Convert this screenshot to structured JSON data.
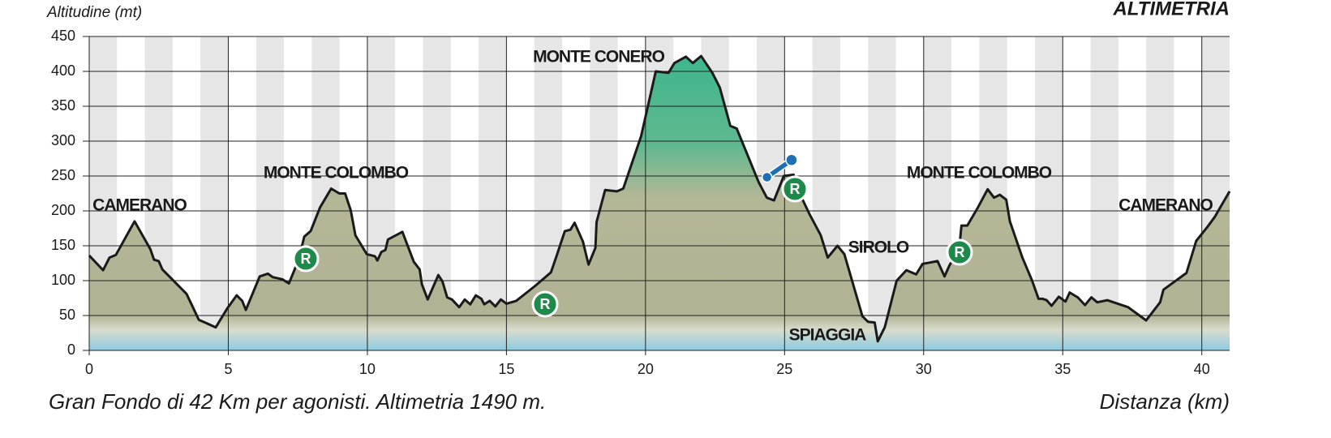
{
  "chart_data": {
    "type": "area",
    "title": "ALTIMETRIA",
    "y_label": "Altitudine (mt)",
    "x_label": "Distanza (km)",
    "subtitle": "Gran Fondo di 42 Km per agonisti. Altimetria 1490 m.",
    "annotations": [
      "CAMERANO",
      "MONTE COLOMBO",
      "MONTE CONERO",
      "SIROLO",
      "SPIAGGIA",
      "MONTE COLOMBO",
      "CAMERANO"
    ],
    "rest_stop_label": "R",
    "x": [
      0,
      0.5,
      0.73,
      0.96,
      1.63,
      2.2,
      2.33,
      2.5,
      2.63,
      3.5,
      3.94,
      4.55,
      4.96,
      5.3,
      5.5,
      5.63,
      6.13,
      6.42,
      6.6,
      6.94,
      7.18,
      7.53,
      7.73,
      7.96,
      8.3,
      8.7,
      8.99,
      9.2,
      9.4,
      9.57,
      9.98,
      10.27,
      10.36,
      10.5,
      10.65,
      10.74,
      11.26,
      11.67,
      11.88,
      11.96,
      12.17,
      12.55,
      12.7,
      12.87,
      13.04,
      13.3,
      13.5,
      13.7,
      13.9,
      14.1,
      14.2,
      14.4,
      14.6,
      14.8,
      15.0,
      15.35,
      16.05,
      16.6,
      16.8,
      17.1,
      17.3,
      17.45,
      17.75,
      17.95,
      18.2,
      18.24,
      18.55,
      18.97,
      19.2,
      19.84,
      20.37,
      20.83,
      21.04,
      21.45,
      21.7,
      22.0,
      22.4,
      22.67,
      23.05,
      23.28,
      24.07,
      24.36,
      24.62,
      24.97,
      25.32,
      25.53,
      25.9,
      26.3,
      26.55,
      26.9,
      27.15,
      27.8,
      28.0,
      28.24,
      28.35,
      28.6,
      29.03,
      29.38,
      29.73,
      29.96,
      30.5,
      30.75,
      30.92,
      31.28,
      31.36,
      31.57,
      31.95,
      32.3,
      32.53,
      32.74,
      32.97,
      33.1,
      33.55,
      33.9,
      34.13,
      34.28,
      34.42,
      34.6,
      34.86,
      35.1,
      35.25,
      35.54,
      35.8,
      36.03,
      36.24,
      36.6,
      37.35,
      38.0,
      38.5,
      38.62,
      39.45,
      39.8,
      40.2,
      40.46,
      41
    ],
    "series": [
      {
        "name": "Altitudine",
        "color": "#1a1a1a",
        "values": [
          136,
          115,
          133,
          137,
          185,
          145,
          130,
          128,
          116,
          81,
          44,
          33,
          60,
          79,
          71,
          58,
          106,
          110,
          105,
          102,
          96,
          130,
          163,
          171,
          205,
          232,
          225,
          225,
          201,
          165,
          138,
          135,
          129,
          141,
          144,
          159,
          170,
          127,
          116,
          95,
          73,
          108,
          99,
          76,
          73,
          62,
          73,
          66,
          79,
          74,
          66,
          71,
          63,
          73,
          67,
          71,
          93,
          112,
          135,
          171,
          173,
          183,
          156,
          123,
          147,
          184,
          230,
          228,
          232,
          307,
          400,
          398,
          412,
          421,
          412,
          422,
          398,
          377,
          322,
          318,
          241,
          219,
          215,
          250,
          252,
          226,
          195,
          165,
          133,
          150,
          138,
          49,
          41,
          40,
          13,
          33,
          100,
          115,
          109,
          124,
          128,
          106,
          121,
          147,
          179,
          179,
          205,
          231,
          219,
          223,
          216,
          185,
          133,
          100,
          74,
          74,
          72,
          64,
          77,
          70,
          83,
          76,
          65,
          76,
          69,
          72,
          62,
          43,
          69,
          87,
          111,
          157,
          177,
          191,
          228
        ]
      }
    ],
    "xlim": [
      0,
      41
    ],
    "ylim": [
      0,
      450
    ],
    "xticks": [
      0,
      5,
      10,
      15,
      20,
      25,
      30,
      35,
      40
    ],
    "yticks": [
      0,
      50,
      100,
      150,
      200,
      250,
      300,
      350,
      400,
      450
    ],
    "grid": true
  }
}
